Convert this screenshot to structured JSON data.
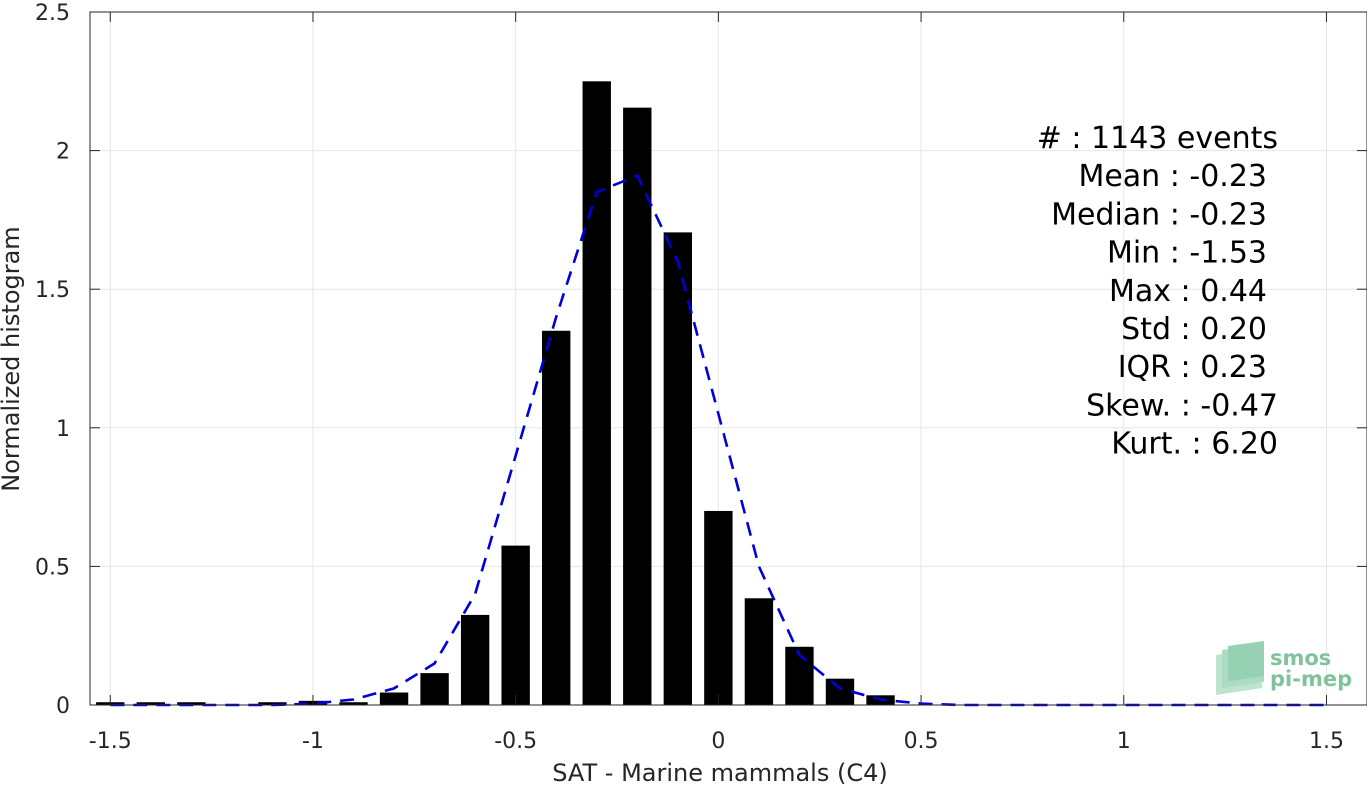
{
  "chart_data": {
    "type": "bar",
    "xlabel": "SAT - Marine mammals (C4)",
    "ylabel": "Normalized histogram",
    "xlim": [
      -1.55,
      1.6
    ],
    "ylim": [
      0,
      2.5
    ],
    "grid": true,
    "x_ticks": [
      -1.5,
      -1,
      -0.5,
      0,
      0.5,
      1,
      1.5
    ],
    "x_tick_labels": [
      "-1.5",
      "-1",
      "-0.5",
      "0",
      "0.5",
      "1",
      "1.5"
    ],
    "y_ticks": [
      0,
      0.5,
      1,
      1.5,
      2,
      2.5
    ],
    "y_tick_labels": [
      "0",
      "0.5",
      "1",
      "1.5",
      "2",
      "2.5"
    ],
    "bar_color": "#000000",
    "bar_width": 0.07,
    "bars": [
      {
        "x": -1.5,
        "y": 0.01
      },
      {
        "x": -1.4,
        "y": 0.01
      },
      {
        "x": -1.3,
        "y": 0.01
      },
      {
        "x": -1.1,
        "y": 0.01
      },
      {
        "x": -1.0,
        "y": 0.015
      },
      {
        "x": -0.9,
        "y": 0.01
      },
      {
        "x": -0.8,
        "y": 0.045
      },
      {
        "x": -0.7,
        "y": 0.115
      },
      {
        "x": -0.6,
        "y": 0.325
      },
      {
        "x": -0.5,
        "y": 0.575
      },
      {
        "x": -0.4,
        "y": 1.35
      },
      {
        "x": -0.3,
        "y": 2.25
      },
      {
        "x": -0.2,
        "y": 2.155
      },
      {
        "x": -0.1,
        "y": 1.705
      },
      {
        "x": 0.0,
        "y": 0.7
      },
      {
        "x": 0.1,
        "y": 0.385
      },
      {
        "x": 0.2,
        "y": 0.21
      },
      {
        "x": 0.3,
        "y": 0.095
      },
      {
        "x": 0.4,
        "y": 0.035
      }
    ],
    "fit_curve": {
      "color": "#0000dd",
      "style": "dashed",
      "x": [
        -1.5,
        -1.4,
        -1.3,
        -1.2,
        -1.1,
        -1.0,
        -0.9,
        -0.8,
        -0.7,
        -0.6,
        -0.5,
        -0.4,
        -0.3,
        -0.2,
        -0.1,
        0.0,
        0.1,
        0.2,
        0.3,
        0.4,
        0.5,
        0.6,
        0.7,
        0.8,
        0.9,
        1.0,
        1.1,
        1.2,
        1.3,
        1.4,
        1.5
      ],
      "y": [
        0,
        0,
        0,
        0,
        0,
        0.005,
        0.02,
        0.06,
        0.15,
        0.4,
        0.9,
        1.4,
        1.85,
        1.91,
        1.6,
        1.05,
        0.5,
        0.18,
        0.06,
        0.02,
        0.005,
        0,
        0,
        0,
        0,
        0,
        0,
        0,
        0,
        0,
        0
      ]
    },
    "stats": [
      "#  : 1143 events",
      "Mean : -0.23",
      "Median : -0.23",
      "Min : -1.53",
      "Max : 0.44",
      "Std : 0.20",
      "IQR : 0.23",
      "Skew. : -0.47",
      "Kurt. : 6.20"
    ]
  },
  "logo": {
    "line1": "smos",
    "line2": "pi-mep",
    "color": "#7fc29b"
  }
}
